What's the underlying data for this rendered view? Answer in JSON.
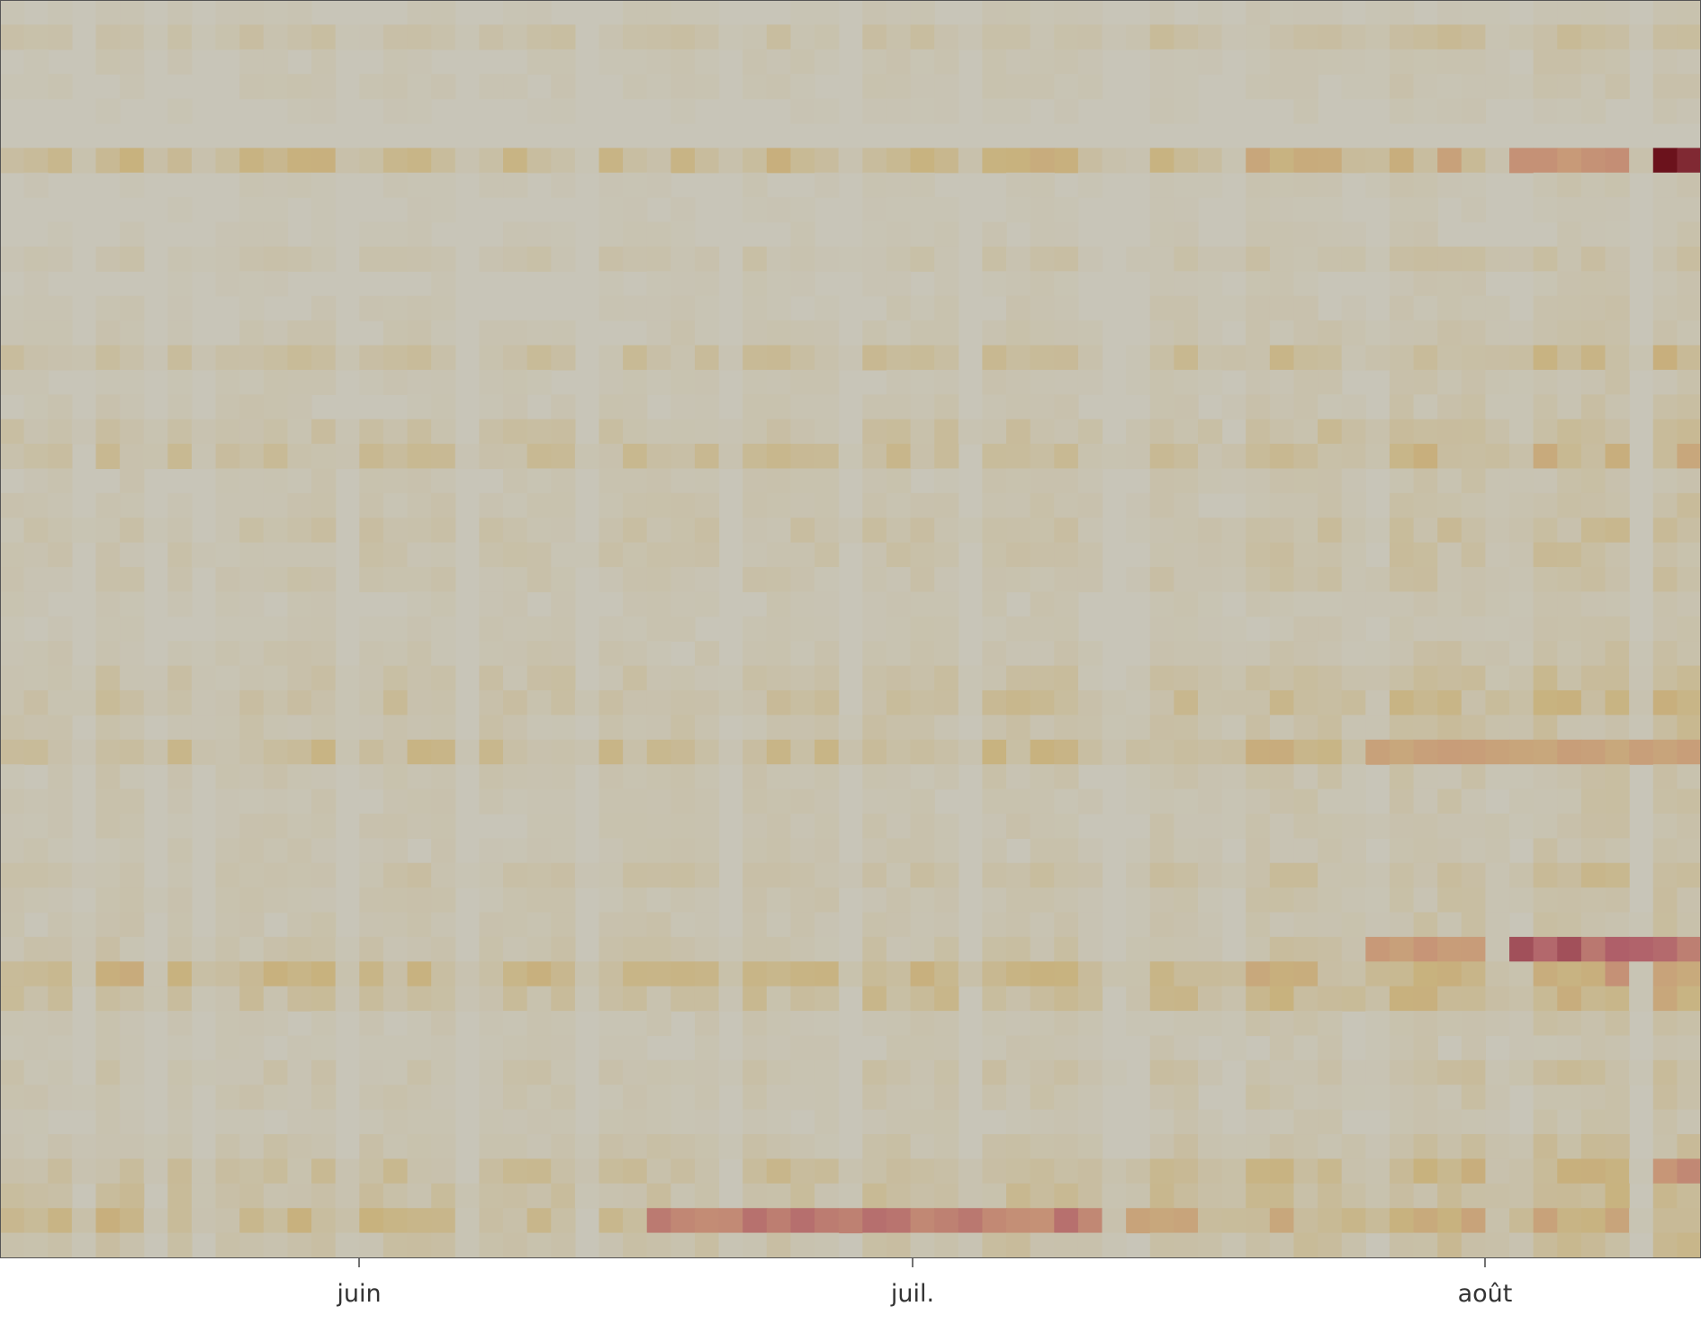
{
  "chart_data": {
    "type": "heatmap",
    "title": "",
    "xlabel": "",
    "ylabel": "",
    "x_tick_labels": [
      "juin",
      "juil.",
      "août"
    ],
    "rows": 51,
    "columns": 71,
    "color_scale": [
      "#c8c5b8",
      "#c8b27e",
      "#c89878",
      "#b0606a",
      "#640a14"
    ],
    "background_color": "#c8c5b8",
    "gap_columns": [
      3,
      6,
      8,
      14,
      19,
      24,
      30,
      35,
      40,
      46,
      47,
      51,
      57,
      63,
      68
    ],
    "cells_note_excluded": "",
    "row_activity": [
      0.03,
      0.1,
      0.04,
      0.04,
      0.02,
      0.0,
      0.26,
      0.03,
      0.02,
      0.03,
      0.08,
      0.03,
      0.04,
      0.05,
      0.15,
      0.04,
      0.05,
      0.12,
      0.17,
      0.05,
      0.06,
      0.1,
      0.08,
      0.07,
      0.04,
      0.04,
      0.06,
      0.1,
      0.15,
      0.08,
      0.22,
      0.06,
      0.05,
      0.05,
      0.05,
      0.1,
      0.06,
      0.06,
      0.08,
      0.28,
      0.17,
      0.05,
      0.04,
      0.08,
      0.06,
      0.04,
      0.08,
      0.18,
      0.14,
      0.26,
      0.1
    ],
    "column_trend": [
      0.6,
      0.6,
      0.6,
      0.55,
      0.8,
      0.8,
      0.6,
      0.7,
      0.7,
      0.55,
      0.75,
      0.75,
      0.75,
      0.75,
      0.5,
      0.75,
      0.75,
      0.75,
      0.75,
      0.45,
      0.7,
      0.7,
      0.7,
      0.7,
      0.45,
      0.7,
      0.75,
      0.75,
      0.75,
      0.7,
      0.45,
      0.8,
      0.8,
      0.8,
      0.8,
      0.5,
      0.85,
      0.85,
      0.85,
      0.85,
      0.5,
      0.9,
      0.9,
      0.9,
      0.9,
      0.6,
      0.5,
      0.9,
      0.95,
      0.95,
      0.5,
      1.0,
      1.05,
      1.05,
      1.05,
      1.0,
      0.6,
      1.15,
      1.2,
      1.2,
      1.2,
      1.2,
      0.6,
      1.35,
      1.4,
      1.4,
      1.4,
      1.4,
      0.6,
      1.5,
      1.55
    ],
    "hotspots": [
      {
        "row": 6,
        "col_from": 63,
        "col_to": 67,
        "value": 0.55
      },
      {
        "row": 6,
        "col_from": 69,
        "col_to": 70,
        "value": 0.9
      },
      {
        "row": 38,
        "col_from": 63,
        "col_to": 70,
        "value": 0.7
      },
      {
        "row": 38,
        "col_from": 57,
        "col_to": 61,
        "value": 0.45
      },
      {
        "row": 49,
        "col_from": 27,
        "col_to": 45,
        "value": 0.6
      },
      {
        "row": 49,
        "col_from": 47,
        "col_to": 49,
        "value": 0.4
      },
      {
        "row": 30,
        "col_from": 57,
        "col_to": 70,
        "value": 0.4
      },
      {
        "row": 47,
        "col_from": 69,
        "col_to": 70,
        "value": 0.5
      }
    ]
  }
}
